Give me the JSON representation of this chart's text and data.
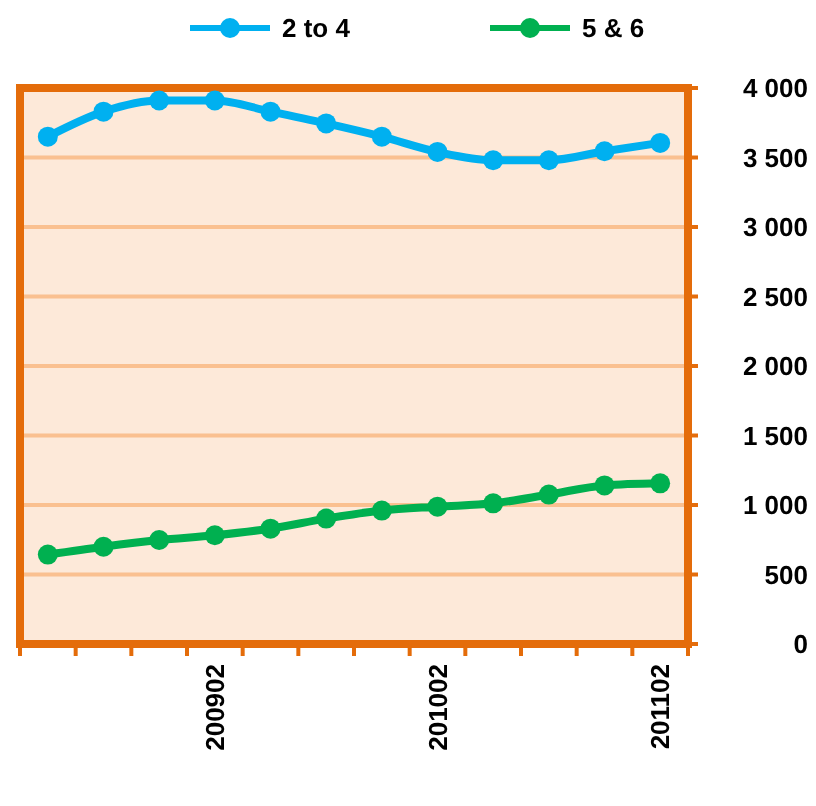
{
  "chart_data": {
    "type": "line",
    "categories": [
      null,
      null,
      null,
      "200902",
      null,
      null,
      null,
      "201002",
      null,
      null,
      null,
      "201102"
    ],
    "series": [
      {
        "name": "2 to 4",
        "color": "#00b0f0",
        "values": [
          3650,
          3830,
          3910,
          3910,
          3830,
          3745,
          3650,
          3540,
          3480,
          3480,
          3545,
          3605
        ]
      },
      {
        "name": "5 & 6",
        "color": "#00b050",
        "values": [
          643,
          700,
          748,
          782,
          830,
          902,
          960,
          988,
          1012,
          1075,
          1141,
          1156
        ]
      }
    ],
    "ylim": [
      0,
      4000
    ],
    "yticks": [
      {
        "value": 0,
        "label": "0"
      },
      {
        "value": 500,
        "label": "500"
      },
      {
        "value": 1000,
        "label": "1 000"
      },
      {
        "value": 1500,
        "label": "1 500"
      },
      {
        "value": 2000,
        "label": "2 000"
      },
      {
        "value": 2500,
        "label": "2 500"
      },
      {
        "value": 3000,
        "label": "3 000"
      },
      {
        "value": 3500,
        "label": "3 500"
      },
      {
        "value": 4000,
        "label": "4 000"
      }
    ],
    "grid": "y",
    "legend": "top",
    "marker": "circle",
    "line_style": "solid"
  }
}
